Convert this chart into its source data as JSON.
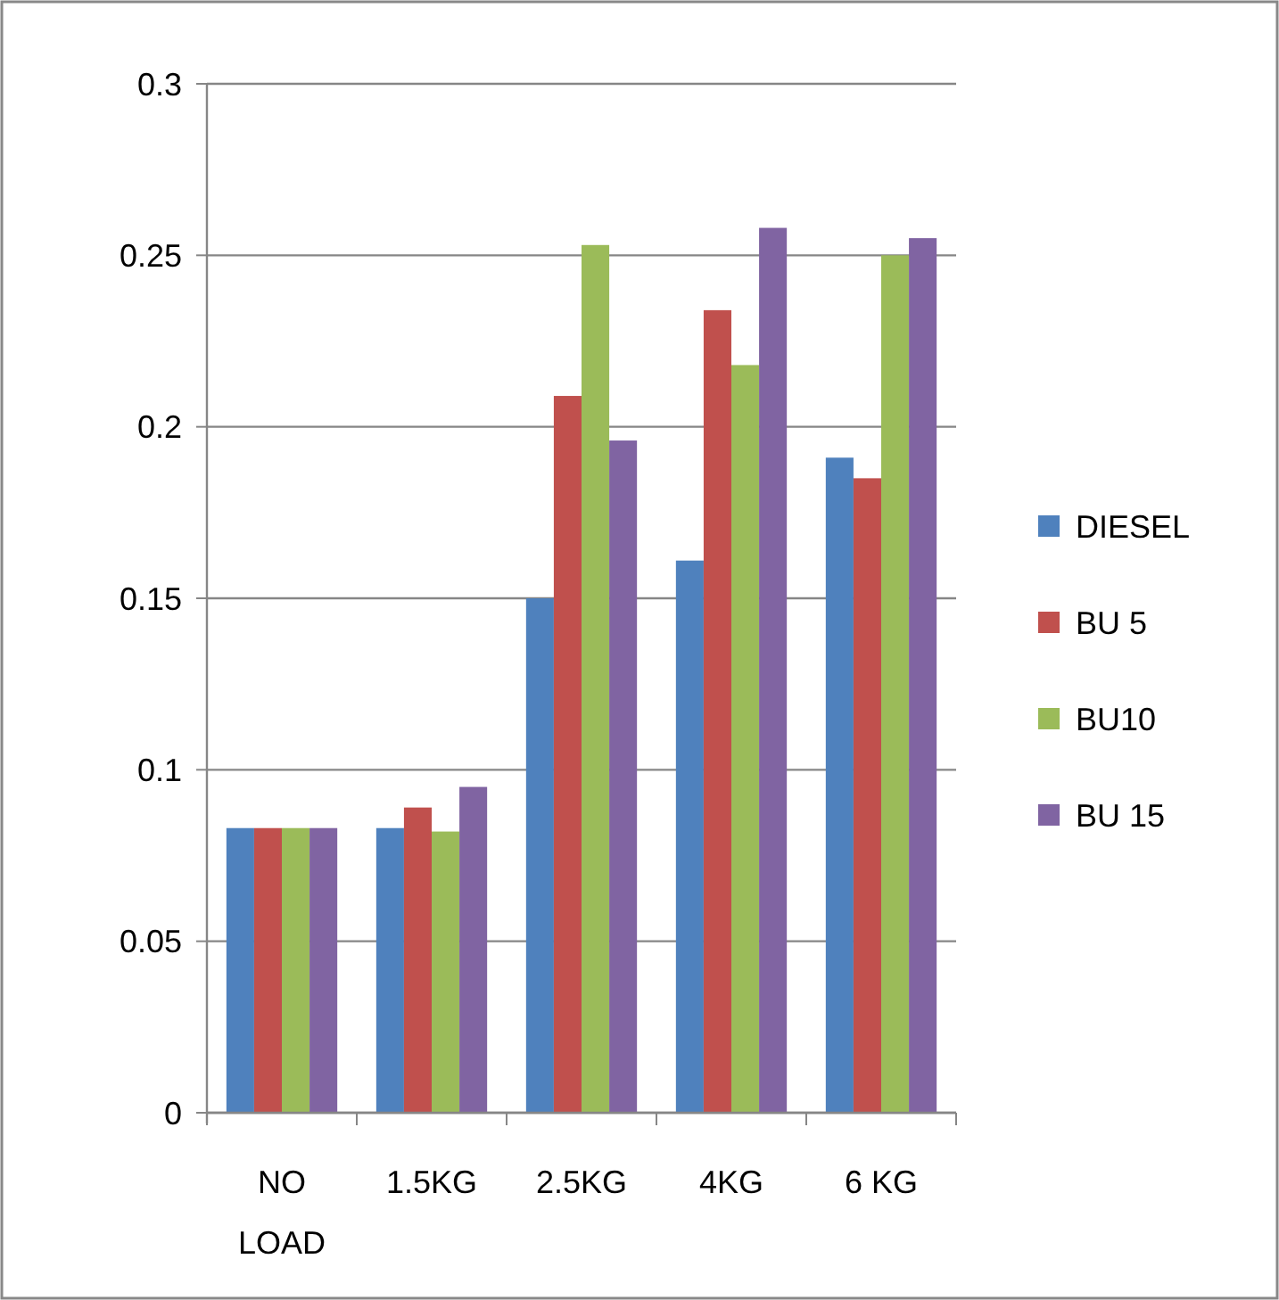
{
  "chart_data": {
    "type": "bar",
    "categories": [
      "NO LOAD",
      "1.5KG",
      "2.5KG",
      "4KG",
      "6 KG"
    ],
    "series": [
      {
        "name": "DIESEL",
        "color": "#4f81bd",
        "values": [
          0.083,
          0.083,
          0.15,
          0.161,
          0.191
        ]
      },
      {
        "name": "BU 5",
        "color": "#c0504d",
        "values": [
          0.083,
          0.089,
          0.209,
          0.234,
          0.185
        ]
      },
      {
        "name": "BU10",
        "color": "#9bbb59",
        "values": [
          0.083,
          0.082,
          0.253,
          0.218,
          0.25
        ]
      },
      {
        "name": "BU 15",
        "color": "#8064a2",
        "values": [
          0.083,
          0.095,
          0.196,
          0.258,
          0.255
        ]
      }
    ],
    "ylim": [
      0,
      0.3
    ],
    "yticks": [
      0,
      0.05,
      0.1,
      0.15,
      0.2,
      0.25,
      0.3
    ],
    "grid": "y",
    "legend": "right"
  }
}
